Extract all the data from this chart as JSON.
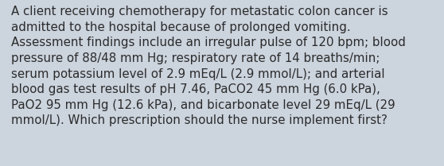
{
  "lines": [
    "A client receiving chemotherapy for metastatic colon cancer is",
    "admitted to the hospital because of prolonged vomiting.",
    "Assessment findings include an irregular pulse of 120 bpm; blood",
    "pressure of 88/48 mm Hg; respiratory rate of 14 breaths/min;",
    "serum potassium level of 2.9 mEq/L (2.9 mmol/L); and arterial",
    "blood gas test results of pH 7.46, PaCO2 45 mm Hg (6.0 kPa),",
    "PaO2 95 mm Hg (12.6 kPa), and bicarbonate level 29 mEq/L (29",
    "mmol/L). Which prescription should the nurse implement first?"
  ],
  "background_color": "#ccd4de",
  "text_color": "#2b2b2b",
  "font_size": 10.8,
  "fig_width": 5.58,
  "fig_height": 2.09,
  "dpi": 100
}
